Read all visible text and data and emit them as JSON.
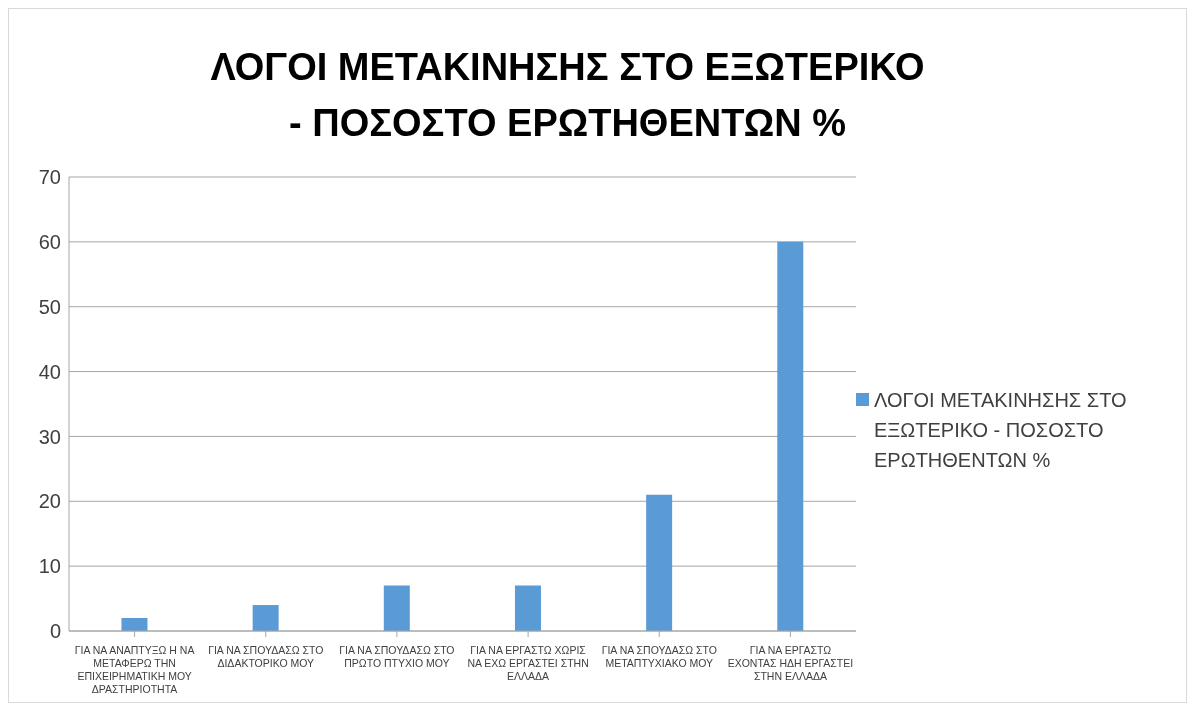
{
  "chart_data": {
    "type": "bar",
    "title": "ΛΟΓΟΙ ΜΕΤΑΚΙΝΗΣΗΣ ΣΤΟ ΕΞΩΤΕΡΙΚΟ - ΠΟΣΟΣΤΟ ΕΡΩΤΗΘΕΝΤΩΝ %",
    "categories": [
      "ΓΙΑ ΝΑ ΑΝΑΠΤΥΞΩ Η ΝΑ ΜΕΤΑΦΕΡΩ ΤΗΝ ΕΠΙΧΕΙΡΗΜΑΤΙΚΗ ΜΟΥ ΔΡΑΣΤΗΡΙΟΤΗΤΑ",
      "ΓΙΑ ΝΑ ΣΠΟΥΔΑΣΩ ΣΤΟ ΔΙΔΑΚΤΟΡΙΚΟ ΜΟΥ",
      "ΓΙΑ ΝΑ ΣΠΟΥΔΑΣΩ ΣΤΟ ΠΡΩΤΟ ΠΤΥΧΙΟ ΜΟΥ",
      "ΓΙΑ ΝΑ ΕΡΓΑΣΤΩ ΧΩΡΙΣ ΝΑ ΕΧΩ ΕΡΓΑΣΤΕΙ ΣΤΗΝ ΕΛΛΑΔΑ",
      "ΓΙΑ ΝΑ ΣΠΟΥΔΑΣΩ ΣΤΟ ΜΕΤΑΠΤΥΧΙΑΚΟ ΜΟΥ",
      "ΓΙΑ ΝΑ ΕΡΓΑΣΤΩ ΕΧΟΝΤΑΣ ΗΔΗ ΕΡΓΑΣΤΕΙ ΣΤΗΝ ΕΛΛΑΔΑ"
    ],
    "series": [
      {
        "name": "ΛΟΓΟΙ ΜΕΤΑΚΙΝΗΣΗΣ ΣΤΟ ΕΞΩΤΕΡΙΚΟ - ΠΟΣΟΣΤΟ ΕΡΩΤΗΘΕΝΤΩΝ %",
        "color": "#5b9bd5",
        "values": [
          2,
          4,
          7,
          7,
          21,
          60
        ]
      }
    ],
    "ylim": [
      0,
      70
    ],
    "yticks": [
      0,
      10,
      20,
      30,
      40,
      50,
      60,
      70
    ],
    "grid": "y",
    "legend": "right"
  }
}
